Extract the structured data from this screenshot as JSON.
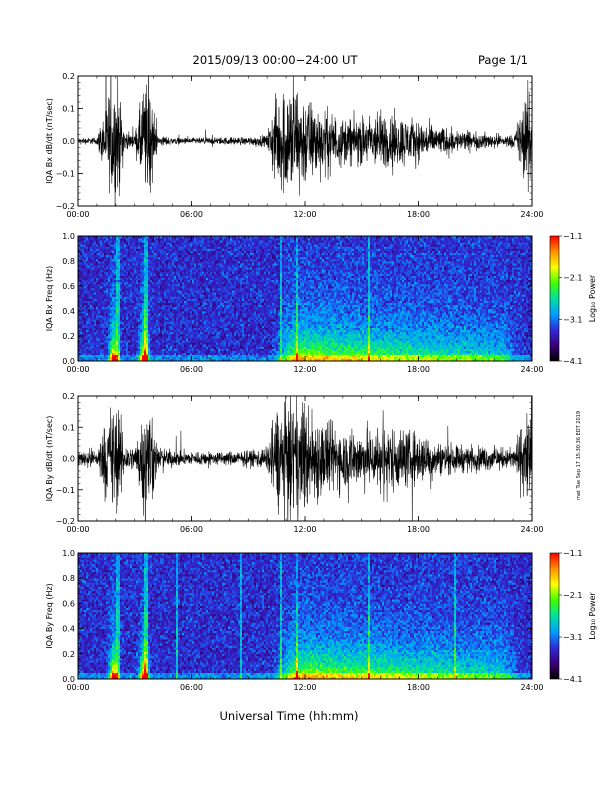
{
  "header": {
    "title": "2015/09/13  00:00−24:00 UT",
    "page": "Page 1/1"
  },
  "footer": {
    "xlabel": "Universal Time (hh:mm)",
    "stamp": "mat Tue Sep 17 15:30:36 EDT 2019"
  },
  "chart_data": [
    {
      "type": "line",
      "ylabel": "IQA Bx dB/dt (nT/sec)",
      "xlim": [
        0,
        24
      ],
      "ylim": [
        -0.2,
        0.2
      ],
      "xticks": [
        "00:00",
        "06:00",
        "12:00",
        "18:00",
        "24:00"
      ],
      "yticks": [
        "0.2",
        "0.1",
        "0.0",
        "−0.1",
        "−0.2"
      ],
      "series": [
        {
          "x": [
            0,
            1,
            1.8,
            2.1,
            2.5,
            3,
            3.5,
            3.8,
            4.2,
            5,
            6,
            7,
            8,
            9,
            10,
            10.3,
            10.7,
            11,
            11.5,
            12,
            12.5,
            13,
            14,
            15,
            16,
            17,
            18,
            18.5,
            19,
            20,
            21,
            22,
            23,
            23.9,
            24
          ],
          "amplitude": [
            0.01,
            0.012,
            0.2,
            0.2,
            0.03,
            0.02,
            0.2,
            0.2,
            0.02,
            0.012,
            0.01,
            0.012,
            0.013,
            0.014,
            0.02,
            0.12,
            0.17,
            0.2,
            0.2,
            0.16,
            0.13,
            0.11,
            0.08,
            0.08,
            0.1,
            0.09,
            0.07,
            0.06,
            0.05,
            0.04,
            0.03,
            0.025,
            0.02,
            0.2,
            0.2
          ]
        }
      ]
    },
    {
      "type": "heatmap",
      "ylabel": "IQA Bx Freq (Hz)",
      "xlim": [
        0,
        24
      ],
      "ylim": [
        0,
        1.0
      ],
      "xticks": [
        "00:00",
        "06:00",
        "12:00",
        "18:00",
        "24:00"
      ],
      "yticks": [
        "1.0",
        "0.8",
        "0.6",
        "0.4",
        "0.2",
        "0.0"
      ],
      "colorbar": {
        "label": "Log₁₀ Power",
        "range": [
          -4.1,
          -1.1
        ],
        "ticks": [
          "−1.1",
          "−2.1",
          "−3.1",
          "−4.1"
        ],
        "colors": [
          "#000000",
          "#3a0078",
          "#2f2cd8",
          "#00a0ff",
          "#00e0a0",
          "#40ff00",
          "#ffff00",
          "#ff9000",
          "#ff0000"
        ]
      },
      "bursts_hours": [
        1.9,
        3.5
      ],
      "activity_hours": [
        10.3,
        23.5
      ],
      "vertical_streaks_hours": [
        2.1,
        3.6,
        10.7,
        11.6,
        15.4
      ]
    },
    {
      "type": "line",
      "ylabel": "IQA By dB/dt (nT/sec)",
      "xlim": [
        0,
        24
      ],
      "ylim": [
        -0.2,
        0.2
      ],
      "xticks": [
        "00:00",
        "06:00",
        "12:00",
        "18:00",
        "24:00"
      ],
      "yticks": [
        "0.2",
        "0.1",
        "0.0",
        "−0.1",
        "−0.2"
      ],
      "series": [
        {
          "x": [
            0,
            1,
            1.8,
            2.1,
            2.5,
            3,
            3.5,
            3.8,
            4.2,
            5,
            6,
            7,
            8,
            9,
            10,
            10.3,
            10.7,
            11,
            11.5,
            12,
            12.5,
            13,
            14,
            15,
            16,
            17,
            18,
            18.5,
            19,
            20,
            21,
            22,
            23,
            23.9,
            24
          ],
          "amplitude": [
            0.03,
            0.035,
            0.2,
            0.2,
            0.05,
            0.04,
            0.2,
            0.2,
            0.04,
            0.03,
            0.025,
            0.025,
            0.025,
            0.028,
            0.04,
            0.15,
            0.2,
            0.2,
            0.2,
            0.2,
            0.17,
            0.14,
            0.11,
            0.1,
            0.12,
            0.11,
            0.09,
            0.08,
            0.06,
            0.05,
            0.045,
            0.04,
            0.035,
            0.2,
            0.2
          ]
        }
      ]
    },
    {
      "type": "heatmap",
      "ylabel": "IQA By Freq (Hz)",
      "xlim": [
        0,
        24
      ],
      "ylim": [
        0,
        1.0
      ],
      "xticks": [
        "00:00",
        "06:00",
        "12:00",
        "18:00",
        "24:00"
      ],
      "yticks": [
        "1.0",
        "0.8",
        "0.6",
        "0.4",
        "0.2",
        "0.0"
      ],
      "colorbar": {
        "label": "Log₁₀ Power",
        "range": [
          -4.1,
          -1.1
        ],
        "ticks": [
          "−1.1",
          "−2.1",
          "−3.1",
          "−4.1"
        ],
        "colors": [
          "#000000",
          "#3a0078",
          "#2f2cd8",
          "#00a0ff",
          "#00e0a0",
          "#40ff00",
          "#ffff00",
          "#ff9000",
          "#ff0000"
        ]
      },
      "bursts_hours": [
        1.9,
        3.5
      ],
      "activity_hours": [
        10.3,
        23.5
      ],
      "vertical_streaks_hours": [
        2.1,
        3.6,
        5.2,
        8.6,
        10.7,
        11.6,
        15.4,
        19.9
      ]
    }
  ]
}
